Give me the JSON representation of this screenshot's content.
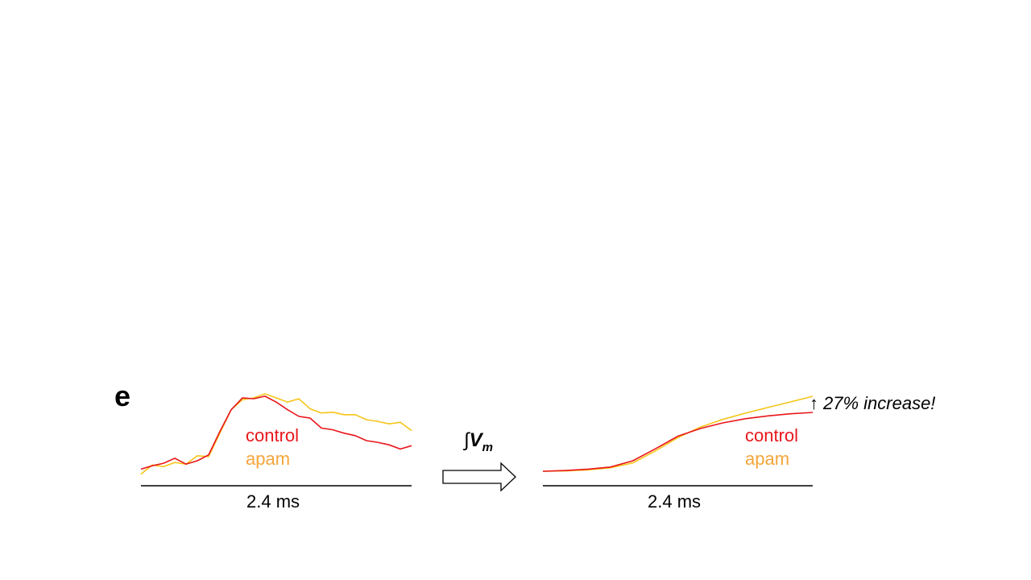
{
  "panel_label": "e",
  "operation": {
    "integral_symbol": "∫",
    "variable": "V",
    "subscript": "m"
  },
  "annotation": {
    "arrow_glyph": "↑",
    "text": "27% increase!"
  },
  "colors": {
    "control": "#e8161b",
    "apam": "#f5c518",
    "apam_label": "#f5a53a",
    "axis": "#000000"
  },
  "chart_data": [
    {
      "type": "line",
      "name": "raw-vm",
      "title": "",
      "xlabel": "2.4 ms",
      "ylabel": "",
      "x": [
        0.0,
        0.1,
        0.2,
        0.3,
        0.4,
        0.5,
        0.6,
        0.7,
        0.8,
        0.9,
        1.0,
        1.1,
        1.2,
        1.3,
        1.4,
        1.5,
        1.6,
        1.7,
        1.8,
        1.9,
        2.0,
        2.1,
        2.2,
        2.3,
        2.4
      ],
      "xlim": [
        0,
        2.4
      ],
      "ylim": [
        0,
        1
      ],
      "legend": [
        "control",
        "apam"
      ],
      "series": [
        {
          "name": "control",
          "values": [
            0.15,
            0.19,
            0.22,
            0.28,
            0.21,
            0.25,
            0.32,
            0.6,
            0.86,
            1.0,
            0.99,
            1.02,
            0.95,
            0.86,
            0.78,
            0.76,
            0.64,
            0.62,
            0.58,
            0.55,
            0.49,
            0.47,
            0.44,
            0.39,
            0.43
          ]
        },
        {
          "name": "apam",
          "values": [
            0.09,
            0.2,
            0.18,
            0.23,
            0.21,
            0.31,
            0.3,
            0.58,
            0.86,
            0.98,
            1.0,
            1.05,
            1.0,
            0.95,
            0.99,
            0.87,
            0.82,
            0.83,
            0.8,
            0.8,
            0.74,
            0.72,
            0.69,
            0.71,
            0.61
          ]
        }
      ]
    },
    {
      "type": "line",
      "name": "integral-vm",
      "title": "",
      "xlabel": "2.4 ms",
      "ylabel": "",
      "x": [
        0.0,
        0.2,
        0.4,
        0.6,
        0.8,
        1.0,
        1.2,
        1.4,
        1.6,
        1.8,
        2.0,
        2.2,
        2.4
      ],
      "xlim": [
        0,
        2.4
      ],
      "ylim": [
        0,
        1
      ],
      "legend": [
        "control",
        "apam"
      ],
      "series": [
        {
          "name": "control",
          "values": [
            0.0,
            0.01,
            0.03,
            0.06,
            0.15,
            0.32,
            0.5,
            0.61,
            0.69,
            0.75,
            0.79,
            0.82,
            0.84
          ]
        },
        {
          "name": "apam",
          "values": [
            0.0,
            0.005,
            0.02,
            0.05,
            0.12,
            0.29,
            0.48,
            0.63,
            0.74,
            0.83,
            0.91,
            0.99,
            1.07
          ]
        }
      ]
    }
  ]
}
